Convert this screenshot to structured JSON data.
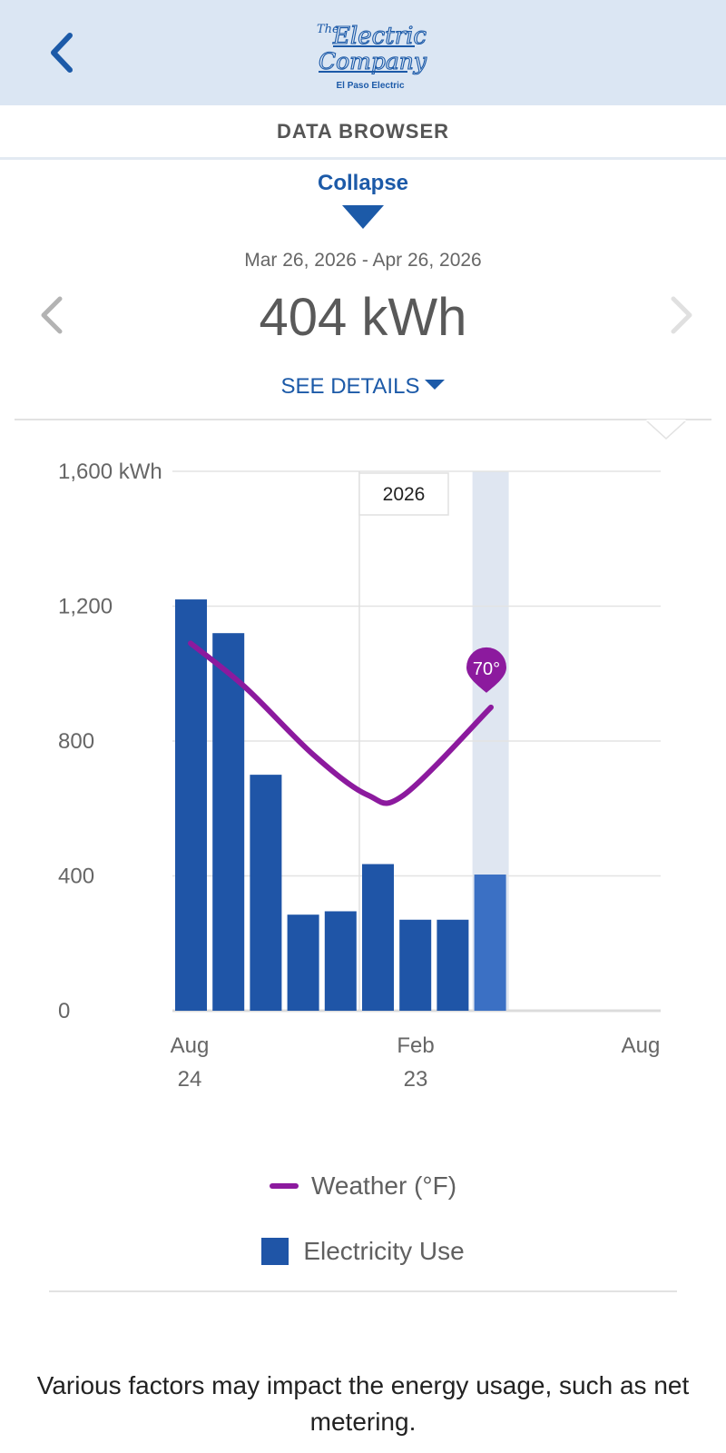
{
  "header": {
    "logo_text_top": "The",
    "logo_text_1": "Electric",
    "logo_text_2": "Company",
    "logo_subtitle": "El Paso Electric",
    "page_title": "DATA BROWSER"
  },
  "summary": {
    "collapse_label": "Collapse",
    "date_range": "Mar 26, 2026 - Apr 26, 2026",
    "usage_value": "404 kWh",
    "see_details_label": "SEE DETAILS"
  },
  "chart_data": {
    "type": "bar",
    "title": "",
    "ylabel": "",
    "y_unit_label": "1,600 kWh",
    "ylim": [
      0,
      1600
    ],
    "y_ticks": [
      "0",
      "400",
      "800",
      "1,200",
      "1,600 kWh"
    ],
    "y_tick_values": [
      0,
      400,
      800,
      1200,
      1600
    ],
    "x_tick_labels": [
      {
        "month": "Aug",
        "year": "24"
      },
      {
        "month": "Feb",
        "year": "23"
      },
      {
        "month": "Aug",
        "year": ""
      }
    ],
    "year_marker_label": "2026",
    "series": [
      {
        "name": "Electricity Use",
        "values": [
          1220,
          1120,
          700,
          285,
          295,
          435,
          270,
          270,
          404
        ],
        "color": "#1f55a7",
        "selected_color": "#3b70c4",
        "selected_index": 8
      },
      {
        "name": "Weather (°F)",
        "type": "line",
        "values": [
          1090,
          960,
          760,
          640,
          640,
          900
        ],
        "color": "#8c1a9e",
        "selected_label": "70°"
      }
    ],
    "grid": true,
    "legend_position": "bottom"
  },
  "legend": {
    "weather_label": "Weather (°F)",
    "electricity_label": "Electricity Use"
  },
  "footer": {
    "note": "Various factors may impact the energy usage, such as net metering."
  },
  "colors": {
    "accent": "#1c5aa8",
    "header_bg": "#dbe6f3",
    "bar": "#1f55a7",
    "weather_line": "#8c1a9e"
  }
}
